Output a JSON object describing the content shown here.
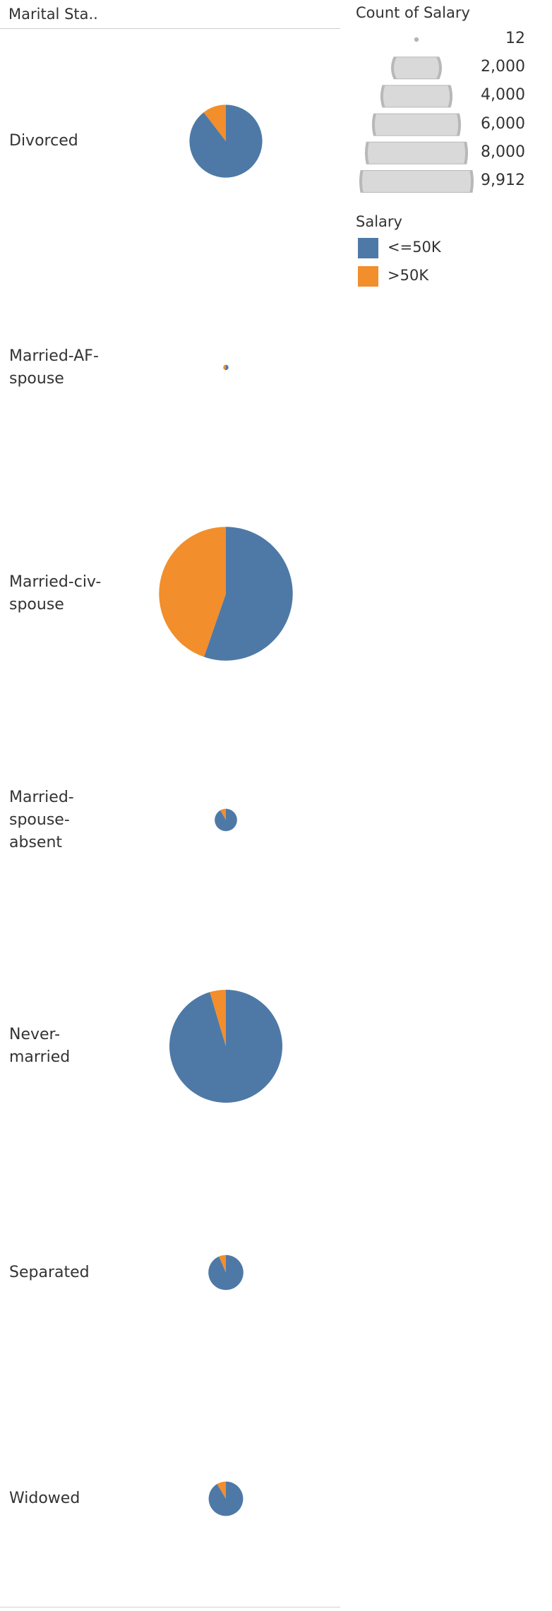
{
  "header": {
    "dimension_label": "Marital Sta.."
  },
  "legends": {
    "size_title": "Count of Salary",
    "size_values": [
      "12",
      "2,000",
      "4,000",
      "6,000",
      "8,000",
      "9,912"
    ],
    "color_title": "Salary",
    "color_items": [
      {
        "label": "<=50K",
        "color": "#4e79a7"
      },
      {
        "label": ">50K",
        "color": "#f28e2b"
      }
    ]
  },
  "chart_data": {
    "type": "pie",
    "size_measure": "Count of Salary",
    "color_dimension": "Salary",
    "series_order": [
      "<=50K",
      ">50K"
    ],
    "rows": [
      {
        "category": "Divorced",
        "label_lines": [
          "Divorced"
        ],
        "values": [
          3980,
          463
        ]
      },
      {
        "category": "Married-AF-spouse",
        "label_lines": [
          "Married-AF-",
          "spouse"
        ],
        "values": [
          13,
          10
        ]
      },
      {
        "category": "Married-civ-spouse",
        "label_lines": [
          "Married-civ-",
          "spouse"
        ],
        "values": [
          8284,
          6692
        ]
      },
      {
        "category": "Married-spouse-absent",
        "label_lines": [
          "Married-",
          "spouse-",
          "absent"
        ],
        "values": [
          384,
          34
        ]
      },
      {
        "category": "Never-married",
        "label_lines": [
          "Never-",
          "married"
        ],
        "values": [
          10192,
          491
        ]
      },
      {
        "category": "Separated",
        "label_lines": [
          "Separated"
        ],
        "values": [
          959,
          66
        ]
      },
      {
        "category": "Widowed",
        "label_lines": [
          "Widowed"
        ],
        "values": [
          908,
          85
        ]
      }
    ]
  }
}
